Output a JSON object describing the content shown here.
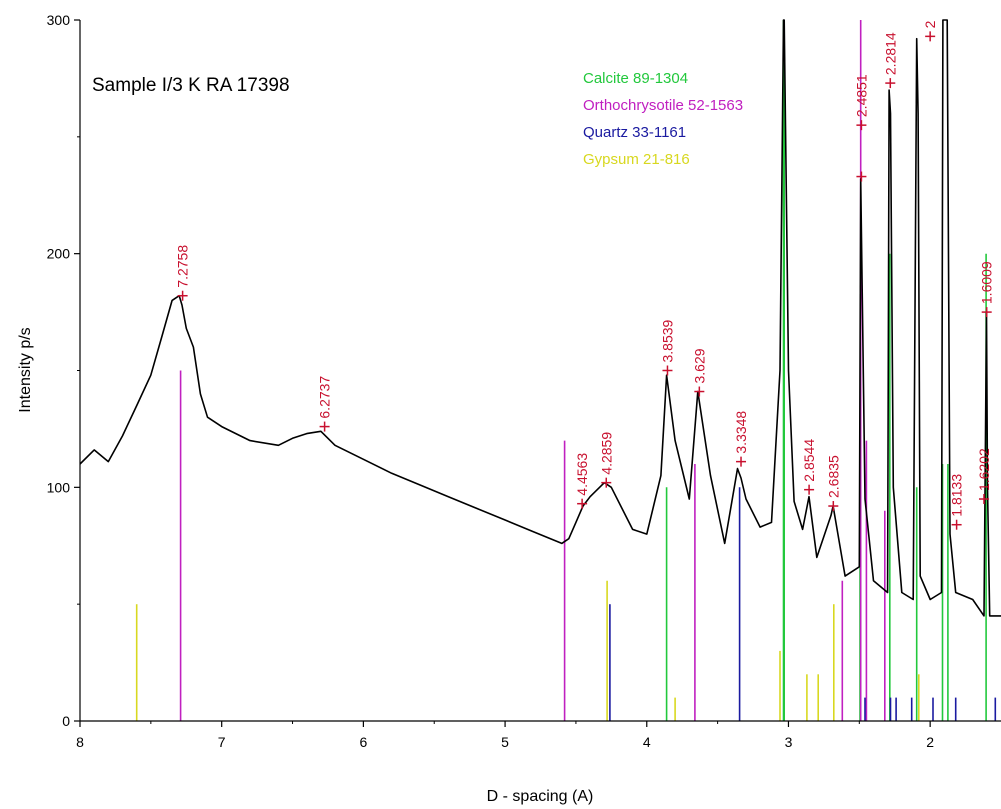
{
  "chart_data": {
    "type": "line",
    "title": "Sample I/3 K  RA  17398",
    "xlabel": "D - spacing (A)",
    "ylabel": "Intensity  p/s",
    "xlim": [
      8,
      1.5
    ],
    "ylim": [
      0,
      300
    ],
    "x_ticks": [
      8,
      7,
      6,
      5,
      4,
      3,
      2
    ],
    "x_tick_labels": [
      "8",
      "7",
      "6",
      "5",
      "4",
      "3",
      "2"
    ],
    "y_ticks": [
      0,
      100,
      200,
      300
    ],
    "y_tick_labels": [
      "0",
      "100",
      "200",
      "300"
    ],
    "grid": false,
    "legend_position": "top-right",
    "colors": {
      "trace": "#000000",
      "marker": "#c8102e",
      "calcite": "#22c83c",
      "orthochrysotile": "#c020c0",
      "quartz": "#1a1aa0",
      "gypsum": "#d8d820"
    },
    "trace": {
      "x": [
        8.0,
        7.9,
        7.8,
        7.7,
        7.6,
        7.5,
        7.42,
        7.35,
        7.3,
        7.28,
        7.25,
        7.2,
        7.15,
        7.1,
        7.0,
        6.8,
        6.6,
        6.5,
        6.4,
        6.3,
        6.2,
        6.0,
        5.8,
        5.6,
        5.4,
        5.2,
        5.0,
        4.8,
        4.6,
        4.55,
        4.5,
        4.45,
        4.4,
        4.3,
        4.25,
        4.1,
        4.0,
        3.9,
        3.86,
        3.8,
        3.7,
        3.64,
        3.55,
        3.45,
        3.36,
        3.335,
        3.3,
        3.2,
        3.12,
        3.06,
        3.035,
        3.03,
        3.0,
        2.96,
        2.9,
        2.855,
        2.8,
        2.7,
        2.685,
        2.6,
        2.5,
        2.49,
        2.46,
        2.4,
        2.3,
        2.29,
        2.28,
        2.26,
        2.2,
        2.12,
        2.095,
        2.085,
        2.07,
        2.0,
        1.92,
        1.91,
        1.895,
        1.88,
        1.86,
        1.82,
        1.7,
        1.62,
        1.602,
        1.595,
        1.58,
        1.5
      ],
      "y": [
        110,
        116,
        111,
        122,
        135,
        148,
        165,
        180,
        182,
        178,
        168,
        160,
        140,
        130,
        126,
        120,
        118,
        121,
        123,
        124,
        118,
        112,
        106,
        101,
        96,
        91,
        86,
        81,
        76,
        78,
        85,
        92,
        96,
        102,
        100,
        82,
        80,
        105,
        148,
        120,
        95,
        141,
        105,
        76,
        108,
        104,
        95,
        83,
        85,
        150,
        300,
        300,
        150,
        94,
        82,
        96,
        70,
        88,
        92,
        62,
        66,
        232,
        95,
        60,
        55,
        270,
        260,
        100,
        55,
        52,
        292,
        260,
        62,
        52,
        55,
        300,
        300,
        300,
        80,
        55,
        52,
        45,
        175,
        100,
        45,
        45
      ]
    },
    "peaks": [
      {
        "d": 7.2758,
        "label": "7.2758",
        "height": 182
      },
      {
        "d": 6.2737,
        "label": "6.2737",
        "height": 126
      },
      {
        "d": 4.4563,
        "label": "4.4563",
        "height": 93
      },
      {
        "d": 4.2859,
        "label": "4.2859",
        "height": 102
      },
      {
        "d": 3.8539,
        "label": "3.8539",
        "height": 150
      },
      {
        "d": 3.629,
        "label": "3.629",
        "height": 141
      },
      {
        "d": 3.3348,
        "label": "3.3348",
        "height": 111
      },
      {
        "d": 2.8544,
        "label": "2.8544",
        "height": 99
      },
      {
        "d": 2.6835,
        "label": "2.6835",
        "height": 92
      },
      {
        "d": 2.4851,
        "label": "2.4851",
        "height": 255
      },
      {
        "d": 2.4851,
        "label": "",
        "height": 233
      },
      {
        "d": 2.2814,
        "label": "2.2814",
        "height": 273
      },
      {
        "d": 2.0,
        "label": "2",
        "height": 293
      },
      {
        "d": 1.8133,
        "label": "1.8133",
        "height": 84
      },
      {
        "d": 1.6202,
        "label": "1.6202",
        "height": 95
      },
      {
        "d": 1.6009,
        "label": "1.6009",
        "height": 175
      }
    ],
    "reference_patterns": [
      {
        "name": "Calcite",
        "code": "89-1304",
        "color": "#22c83c",
        "lines": [
          [
            3.86,
            100
          ],
          [
            3.035,
            300
          ],
          [
            3.03,
            300
          ],
          [
            2.495,
            70
          ],
          [
            2.285,
            200
          ],
          [
            2.095,
            100
          ],
          [
            1.913,
            110
          ],
          [
            1.875,
            110
          ],
          [
            1.605,
            200
          ]
        ]
      },
      {
        "name": "Orthochrysotile",
        "code": "52-1563",
        "color": "#c020c0",
        "lines": [
          [
            7.29,
            150
          ],
          [
            4.58,
            120
          ],
          [
            3.66,
            110
          ],
          [
            2.62,
            60
          ],
          [
            2.49,
            300
          ],
          [
            2.45,
            120
          ],
          [
            2.32,
            90
          ]
        ]
      },
      {
        "name": "Quartz",
        "code": "33-1161",
        "color": "#1a1aa0",
        "lines": [
          [
            4.26,
            50
          ],
          [
            3.345,
            100
          ],
          [
            2.46,
            10
          ],
          [
            2.28,
            10
          ],
          [
            2.24,
            10
          ],
          [
            2.13,
            10
          ],
          [
            1.98,
            10
          ],
          [
            1.82,
            10
          ],
          [
            1.54,
            10
          ]
        ]
      },
      {
        "name": "Gypsum",
        "code": "21-816",
        "color": "#d8d820",
        "lines": [
          [
            7.6,
            50
          ],
          [
            4.28,
            60
          ],
          [
            3.8,
            10
          ],
          [
            3.06,
            30
          ],
          [
            2.87,
            20
          ],
          [
            2.79,
            20
          ],
          [
            2.68,
            50
          ],
          [
            2.08,
            20
          ]
        ]
      }
    ]
  }
}
